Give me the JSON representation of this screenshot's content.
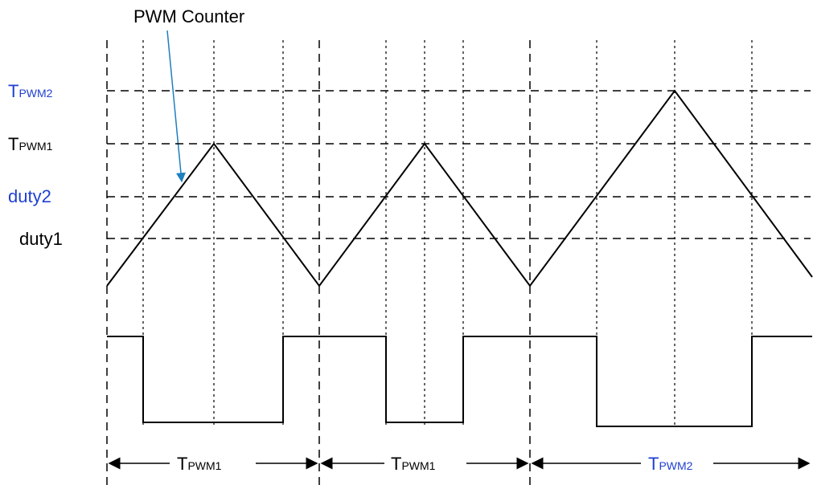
{
  "title": "PWM Counter",
  "levels": {
    "tpwm2": {
      "main": "T",
      "sub": "PWM2",
      "color": "#1f3fd1"
    },
    "tpwm1": {
      "main": "T",
      "sub": "PWM1",
      "color": "#000000"
    },
    "duty2": {
      "label": "duty2",
      "color": "#1f3fd1"
    },
    "duty1": {
      "label": "duty1",
      "color": "#000000"
    }
  },
  "periods": [
    {
      "main": "T",
      "sub": "PWM1",
      "color": "#000000"
    },
    {
      "main": "T",
      "sub": "PWM1",
      "color": "#000000"
    },
    {
      "main": "T",
      "sub": "PWM2",
      "color": "#1f3fd1"
    }
  ],
  "arrow_color": "#1f7fbf"
}
